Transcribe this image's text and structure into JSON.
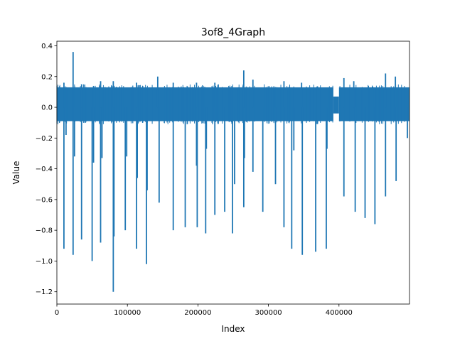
{
  "chart_data": {
    "type": "line",
    "title": "3of8_4Graph",
    "xlabel": "Index",
    "ylabel": "Value",
    "xlim": [
      0,
      500000
    ],
    "ylim": [
      -1.28,
      0.43
    ],
    "xticks": [
      0,
      100000,
      200000,
      300000,
      400000
    ],
    "xtick_labels": [
      "0",
      "100000",
      "200000",
      "300000",
      "400000"
    ],
    "yticks": [
      -1.2,
      -1.0,
      -0.8,
      -0.6,
      -0.4,
      -0.2,
      0.0,
      0.2,
      0.4
    ],
    "ytick_labels": [
      "−1.2",
      "−1.0",
      "−0.8",
      "−0.6",
      "−0.4",
      "−0.2",
      "0.0",
      "0.2",
      "0.4"
    ],
    "grid": false,
    "line_color": "#1f77b4",
    "band": {
      "x_start": 0,
      "x_end": 500000,
      "y_low": -0.09,
      "y_high": 0.13,
      "dip_center_x": 396000,
      "dip_width_x": 8000,
      "dip_y_low": -0.04,
      "dip_y_high": 0.07
    },
    "negative_spikes": [
      [
        10000,
        -0.92
      ],
      [
        13000,
        -0.18
      ],
      [
        23000,
        -0.96
      ],
      [
        25000,
        -0.32
      ],
      [
        35000,
        -0.86
      ],
      [
        50000,
        -1.0
      ],
      [
        52000,
        -0.36
      ],
      [
        62000,
        -0.88
      ],
      [
        64000,
        -0.33
      ],
      [
        80000,
        -1.2
      ],
      [
        81000,
        -0.84
      ],
      [
        97000,
        -0.8
      ],
      [
        99000,
        -0.32
      ],
      [
        113000,
        -0.92
      ],
      [
        114000,
        -0.46
      ],
      [
        127000,
        -1.02
      ],
      [
        128000,
        -0.54
      ],
      [
        145000,
        -0.62
      ],
      [
        165000,
        -0.8
      ],
      [
        182000,
        -0.78
      ],
      [
        198000,
        -0.38
      ],
      [
        199000,
        -0.78
      ],
      [
        211000,
        -0.82
      ],
      [
        212000,
        -0.27
      ],
      [
        224000,
        -0.7
      ],
      [
        238000,
        -0.68
      ],
      [
        249000,
        -0.82
      ],
      [
        252000,
        -0.5
      ],
      [
        265000,
        -0.65
      ],
      [
        266000,
        -0.33
      ],
      [
        278000,
        -0.42
      ],
      [
        292000,
        -0.68
      ],
      [
        310000,
        -0.5
      ],
      [
        322000,
        -0.78
      ],
      [
        333000,
        -0.92
      ],
      [
        336000,
        -0.28
      ],
      [
        348000,
        -0.96
      ],
      [
        367000,
        -0.94
      ],
      [
        382000,
        -0.92
      ],
      [
        383000,
        -0.27
      ],
      [
        407000,
        -0.58
      ],
      [
        423000,
        -0.68
      ],
      [
        437000,
        -0.72
      ],
      [
        451000,
        -0.76
      ],
      [
        466000,
        -0.58
      ],
      [
        481000,
        -0.48
      ],
      [
        497000,
        -0.2
      ]
    ],
    "positive_spikes": [
      [
        10000,
        0.16
      ],
      [
        23000,
        0.36
      ],
      [
        35000,
        0.15
      ],
      [
        62000,
        0.17
      ],
      [
        80000,
        0.17
      ],
      [
        113000,
        0.16
      ],
      [
        143000,
        0.2
      ],
      [
        165000,
        0.16
      ],
      [
        198000,
        0.16
      ],
      [
        224000,
        0.16
      ],
      [
        265000,
        0.24
      ],
      [
        278000,
        0.18
      ],
      [
        322000,
        0.17
      ],
      [
        347000,
        0.16
      ],
      [
        407000,
        0.19
      ],
      [
        421000,
        0.17
      ],
      [
        466000,
        0.22
      ],
      [
        480000,
        0.2
      ]
    ]
  }
}
